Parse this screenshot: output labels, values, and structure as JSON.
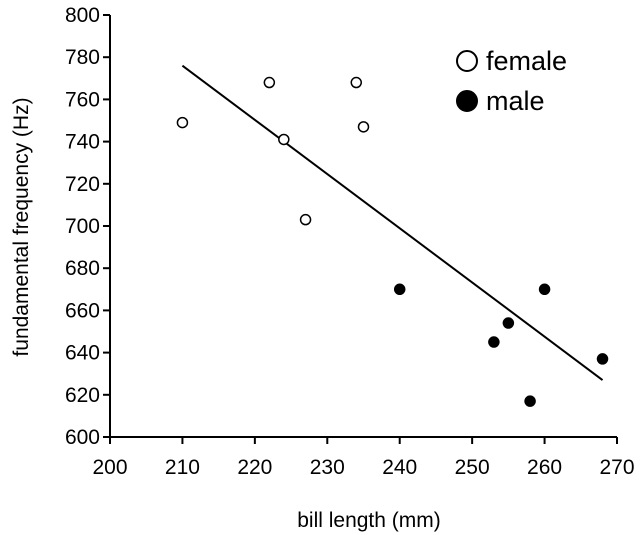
{
  "chart_data": {
    "type": "scatter",
    "xlabel": "bill length (mm)",
    "ylabel": "fundamental frequency (Hz)",
    "xlim": [
      200,
      270
    ],
    "ylim": [
      600,
      800
    ],
    "x_ticks": [
      200,
      210,
      220,
      230,
      240,
      250,
      260,
      270
    ],
    "y_ticks": [
      600,
      620,
      640,
      660,
      680,
      700,
      720,
      740,
      760,
      780,
      800
    ],
    "grid": false,
    "legend_position": "top-right",
    "series": [
      {
        "name": "female",
        "marker": "open-circle",
        "color": "#000000",
        "points": [
          {
            "x": 210,
            "y": 749
          },
          {
            "x": 222,
            "y": 768
          },
          {
            "x": 224,
            "y": 741
          },
          {
            "x": 227,
            "y": 703
          },
          {
            "x": 234,
            "y": 768
          },
          {
            "x": 235,
            "y": 747
          }
        ]
      },
      {
        "name": "male",
        "marker": "filled-circle",
        "color": "#000000",
        "points": [
          {
            "x": 240,
            "y": 670
          },
          {
            "x": 253,
            "y": 645
          },
          {
            "x": 255,
            "y": 654
          },
          {
            "x": 258,
            "y": 617
          },
          {
            "x": 260,
            "y": 670
          },
          {
            "x": 268,
            "y": 637
          }
        ]
      }
    ],
    "trendline": {
      "type": "linear",
      "x_start": 210,
      "y_start": 776,
      "x_end": 268,
      "y_end": 627
    }
  }
}
